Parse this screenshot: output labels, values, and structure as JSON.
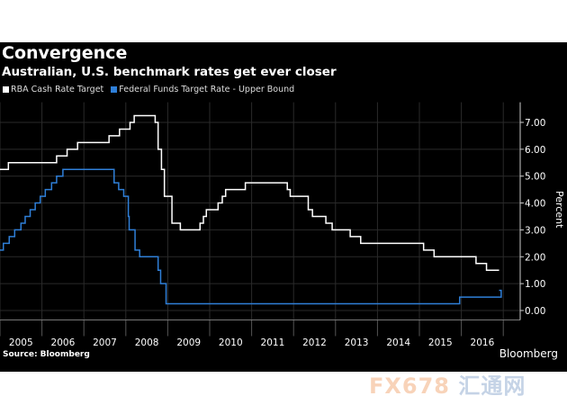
{
  "header": {
    "title": "Convergence",
    "subtitle": "Australian, U.S. benchmark rates get ever closer"
  },
  "footer": {
    "source": "Source: Bloomberg",
    "brand": "Bloomberg"
  },
  "watermark": {
    "text": "FX678",
    "cn": "汇通网"
  },
  "chart_data": {
    "type": "line",
    "title": "Convergence",
    "subtitle": "Australian, U.S. benchmark rates get ever closer",
    "xlabel": "",
    "ylabel": "Percent",
    "xlim": [
      2005,
      2017.2
    ],
    "ylim": [
      -0.35,
      7.75
    ],
    "x_ticks": [
      "2005",
      "2006",
      "2007",
      "2008",
      "2009",
      "2010",
      "2011",
      "2012",
      "2013",
      "2014",
      "2015",
      "2016"
    ],
    "y_ticks": [
      "0.00",
      "1.00",
      "2.00",
      "3.00",
      "4.00",
      "5.00",
      "6.00",
      "7.00"
    ],
    "legend_position": "top-left",
    "series": [
      {
        "name": "RBA Cash Rate Target",
        "color": "#ffffff",
        "step": true,
        "x_end": 2016.9,
        "points": [
          [
            2005.0,
            5.25
          ],
          [
            2005.2,
            5.5
          ],
          [
            2006.35,
            5.75
          ],
          [
            2006.6,
            6.0
          ],
          [
            2006.85,
            6.25
          ],
          [
            2007.6,
            6.5
          ],
          [
            2007.85,
            6.75
          ],
          [
            2008.1,
            7.0
          ],
          [
            2008.2,
            7.25
          ],
          [
            2008.7,
            7.0
          ],
          [
            2008.77,
            6.0
          ],
          [
            2008.85,
            5.25
          ],
          [
            2008.92,
            4.25
          ],
          [
            2009.1,
            3.25
          ],
          [
            2009.3,
            3.0
          ],
          [
            2009.77,
            3.25
          ],
          [
            2009.85,
            3.5
          ],
          [
            2009.92,
            3.75
          ],
          [
            2010.2,
            4.0
          ],
          [
            2010.3,
            4.25
          ],
          [
            2010.38,
            4.5
          ],
          [
            2010.85,
            4.75
          ],
          [
            2011.85,
            4.5
          ],
          [
            2011.92,
            4.25
          ],
          [
            2012.35,
            3.75
          ],
          [
            2012.45,
            3.5
          ],
          [
            2012.77,
            3.25
          ],
          [
            2012.92,
            3.0
          ],
          [
            2013.35,
            2.75
          ],
          [
            2013.6,
            2.5
          ],
          [
            2015.1,
            2.25
          ],
          [
            2015.35,
            2.0
          ],
          [
            2016.35,
            1.75
          ],
          [
            2016.6,
            1.5
          ]
        ]
      },
      {
        "name": "Federal Funds Target Rate - Upper Bound",
        "color": "#2f7fd8",
        "step": true,
        "x_end": 2016.9,
        "points": [
          [
            2005.0,
            2.25
          ],
          [
            2005.08,
            2.5
          ],
          [
            2005.22,
            2.75
          ],
          [
            2005.35,
            3.0
          ],
          [
            2005.5,
            3.25
          ],
          [
            2005.6,
            3.5
          ],
          [
            2005.72,
            3.75
          ],
          [
            2005.84,
            4.0
          ],
          [
            2005.96,
            4.25
          ],
          [
            2006.08,
            4.5
          ],
          [
            2006.23,
            4.75
          ],
          [
            2006.35,
            5.0
          ],
          [
            2006.5,
            5.25
          ],
          [
            2007.72,
            4.75
          ],
          [
            2007.83,
            4.5
          ],
          [
            2007.95,
            4.25
          ],
          [
            2008.06,
            3.5
          ],
          [
            2008.08,
            3.0
          ],
          [
            2008.22,
            2.25
          ],
          [
            2008.33,
            2.0
          ],
          [
            2008.77,
            1.5
          ],
          [
            2008.83,
            1.0
          ],
          [
            2008.96,
            0.25
          ],
          [
            2015.96,
            0.5
          ],
          [
            2016.95,
            0.75
          ]
        ]
      }
    ]
  }
}
